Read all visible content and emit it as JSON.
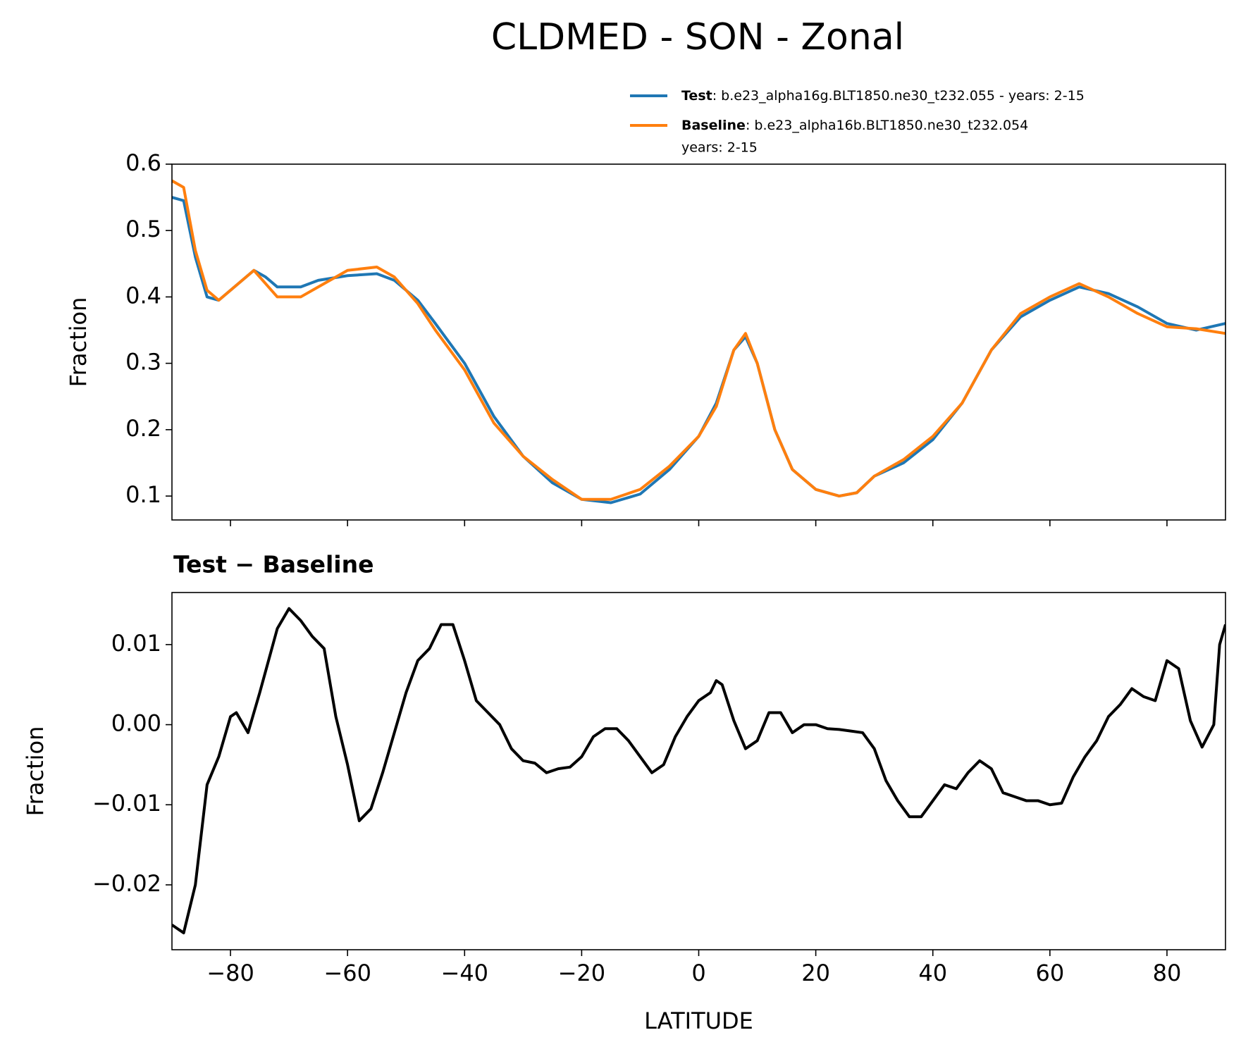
{
  "chart_data": [
    {
      "type": "line",
      "title": "CLDMED - SON - Zonal",
      "ylabel": "Fraction",
      "x": [
        -90,
        -88,
        -86,
        -84,
        -82,
        -80,
        -78,
        -76,
        -74,
        -72,
        -70,
        -68,
        -65,
        -60,
        -55,
        -52,
        -48,
        -45,
        -40,
        -35,
        -30,
        -25,
        -20,
        -15,
        -10,
        -5,
        0,
        3,
        6,
        8,
        10,
        13,
        16,
        20,
        24,
        27,
        30,
        35,
        40,
        45,
        50,
        55,
        60,
        65,
        70,
        75,
        80,
        85,
        90
      ],
      "series": [
        {
          "name": "Test",
          "label_detail": [
            ": b.e23_alpha16g.BLT1850.ne30_t232.055 - years: 2-15"
          ],
          "color": "#1f77b4",
          "values": [
            0.55,
            0.545,
            0.46,
            0.4,
            0.395,
            0.41,
            0.425,
            0.44,
            0.43,
            0.415,
            0.415,
            0.415,
            0.425,
            0.432,
            0.435,
            0.425,
            0.395,
            0.36,
            0.3,
            0.22,
            0.16,
            0.12,
            0.095,
            0.09,
            0.103,
            0.14,
            0.19,
            0.24,
            0.32,
            0.34,
            0.3,
            0.2,
            0.14,
            0.11,
            0.1,
            0.105,
            0.13,
            0.15,
            0.185,
            0.24,
            0.32,
            0.37,
            0.395,
            0.415,
            0.405,
            0.385,
            0.36,
            0.35,
            0.36
          ]
        },
        {
          "name": "Baseline",
          "label_detail": [
            ": b.e23_alpha16b.BLT1850.ne30_t232.054",
            "years: 2-15"
          ],
          "color": "#ff7f0e",
          "values": [
            0.575,
            0.565,
            0.47,
            0.41,
            0.395,
            0.41,
            0.425,
            0.44,
            0.42,
            0.4,
            0.4,
            0.4,
            0.415,
            0.44,
            0.445,
            0.43,
            0.39,
            0.35,
            0.29,
            0.21,
            0.16,
            0.125,
            0.095,
            0.095,
            0.11,
            0.145,
            0.19,
            0.235,
            0.32,
            0.345,
            0.3,
            0.2,
            0.14,
            0.11,
            0.1,
            0.105,
            0.13,
            0.155,
            0.19,
            0.24,
            0.32,
            0.375,
            0.4,
            0.42,
            0.4,
            0.375,
            0.355,
            0.352,
            0.345
          ]
        }
      ],
      "xlim": [
        -90,
        90
      ],
      "xticks": [
        -80,
        -60,
        -40,
        -20,
        0,
        20,
        40,
        60,
        80
      ],
      "ylim": [
        0.064,
        0.6
      ],
      "yticks": [
        0.1,
        0.2,
        0.3,
        0.4,
        0.5,
        0.6
      ]
    },
    {
      "type": "line",
      "title": "Test − Baseline",
      "ylabel": "Fraction",
      "xlabel": "LATITUDE",
      "color": "#000000",
      "x": [
        -90,
        -88,
        -86,
        -84,
        -82,
        -80,
        -79,
        -77,
        -75,
        -72,
        -70,
        -68,
        -66,
        -64,
        -62,
        -60,
        -58,
        -56,
        -54,
        -52,
        -50,
        -48,
        -46,
        -44,
        -42,
        -40,
        -38,
        -36,
        -34,
        -32,
        -30,
        -28,
        -26,
        -24,
        -22,
        -20,
        -18,
        -16,
        -14,
        -12,
        -10,
        -8,
        -6,
        -4,
        -2,
        0,
        2,
        3,
        4,
        6,
        8,
        10,
        12,
        14,
        16,
        18,
        20,
        22,
        24,
        26,
        28,
        30,
        32,
        34,
        36,
        38,
        40,
        42,
        44,
        46,
        48,
        50,
        52,
        54,
        56,
        58,
        60,
        62,
        64,
        66,
        68,
        70,
        72,
        74,
        76,
        78,
        80,
        82,
        84,
        86,
        88,
        89,
        90
      ],
      "values": [
        -0.025,
        -0.026,
        -0.02,
        -0.0075,
        -0.004,
        0.001,
        0.0015,
        -0.001,
        0.004,
        0.012,
        0.0145,
        0.013,
        0.011,
        0.0095,
        0.001,
        -0.005,
        -0.012,
        -0.0105,
        -0.006,
        -0.001,
        0.004,
        0.008,
        0.0095,
        0.0125,
        0.0125,
        0.008,
        0.003,
        0.0015,
        0.0,
        -0.003,
        -0.0045,
        -0.0048,
        -0.006,
        -0.0055,
        -0.0053,
        -0.004,
        -0.0015,
        -0.0005,
        -0.0005,
        -0.002,
        -0.004,
        -0.006,
        -0.005,
        -0.0015,
        0.001,
        0.003,
        0.004,
        0.0055,
        0.005,
        0.0005,
        -0.003,
        -0.002,
        0.0015,
        0.0015,
        -0.001,
        0.0,
        0.0,
        -0.0005,
        -0.0006,
        -0.0008,
        -0.001,
        -0.003,
        -0.007,
        -0.0095,
        -0.0115,
        -0.0115,
        -0.0095,
        -0.0075,
        -0.008,
        -0.006,
        -0.0045,
        -0.0055,
        -0.0085,
        -0.009,
        -0.0095,
        -0.0095,
        -0.01,
        -0.0098,
        -0.0065,
        -0.004,
        -0.002,
        0.001,
        0.0025,
        0.0045,
        0.0035,
        0.003,
        0.008,
        0.007,
        0.0005,
        -0.0028,
        0.0,
        0.01,
        0.0125
      ],
      "xlim": [
        -90,
        90
      ],
      "xticks": [
        {
          "value": -80,
          "label": "−80"
        },
        {
          "value": -60,
          "label": "−60"
        },
        {
          "value": -40,
          "label": "−40"
        },
        {
          "value": -20,
          "label": "−20"
        },
        0,
        20,
        40,
        60,
        80
      ],
      "ylim": [
        -0.0281,
        0.0165
      ],
      "yticks": [
        {
          "value": 0.01,
          "label": "0.01"
        },
        {
          "value": 0,
          "label": "0.00"
        },
        {
          "value": -0.01,
          "label": "−0.01"
        },
        {
          "value": -0.02,
          "label": "−0.02"
        }
      ]
    }
  ]
}
